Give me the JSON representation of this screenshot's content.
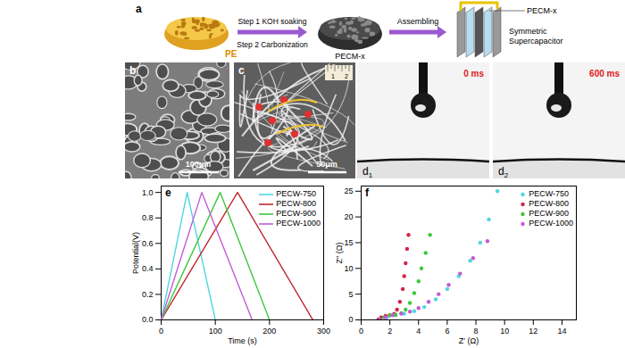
{
  "panels": {
    "a": {
      "label": "a",
      "step1": "Step 1 KOH soaking",
      "step2": "Step 2 Carbonization",
      "assemble": "Assembling",
      "material": "PE",
      "product": "PECM-x",
      "device_electrode": "PECM-x",
      "device": "Symmetric Supercapacitor"
    },
    "b": {
      "label": "b",
      "scale_bar": "100μm"
    },
    "c": {
      "label": "c",
      "scale_bar": "50μm",
      "ruler_labels": [
        "1",
        "2"
      ]
    },
    "d1": {
      "label": "d",
      "index": "1",
      "time": "0 ms"
    },
    "d2": {
      "label": "d",
      "index": "2",
      "time": "600 ms"
    }
  },
  "chart_data": [
    {
      "type": "line",
      "title": "e",
      "xlabel": "Time (s)",
      "ylabel": "Potential(V)",
      "xlim": [
        0,
        300
      ],
      "xticks": [
        0,
        100,
        200,
        300
      ],
      "ylim": [
        0,
        1.05
      ],
      "yticks": [
        {
          "value": 0,
          "label": "0.0"
        },
        {
          "value": 0.2,
          "label": "0.2"
        },
        {
          "value": 0.4,
          "label": "0.4"
        },
        {
          "value": 0.6,
          "label": "0.6"
        },
        {
          "value": 0.8,
          "label": "0.8"
        },
        {
          "value": 1.0,
          "label": "1.0"
        }
      ],
      "legend": "top-right",
      "series": [
        {
          "name": "PECW-750",
          "color": "#4fd6e0",
          "x": [
            0,
            48,
            100
          ],
          "values": [
            0,
            1.0,
            0
          ]
        },
        {
          "name": "PECW-800",
          "color": "#c0282e",
          "x": [
            0,
            141,
            280
          ],
          "values": [
            0,
            1.0,
            0
          ]
        },
        {
          "name": "PECW-900",
          "color": "#3cc83c",
          "x": [
            0,
            109,
            200
          ],
          "values": [
            0,
            1.0,
            0
          ]
        },
        {
          "name": "PECW-1000",
          "color": "#c45ad8",
          "x": [
            0,
            75,
            168
          ],
          "values": [
            0,
            1.0,
            0
          ]
        }
      ]
    },
    {
      "type": "scatter",
      "title": "f",
      "xlabel": "Z′ (Ω)",
      "ylabel": "Z″ (Ω)",
      "xlim": [
        0,
        15
      ],
      "xticks": [
        0,
        2,
        4,
        6,
        8,
        10,
        12,
        14
      ],
      "ylim": [
        0,
        26
      ],
      "yticks": [
        0,
        5,
        10,
        15,
        20,
        25
      ],
      "legend": "top-right",
      "marker": "circle",
      "series": [
        {
          "name": "PECW-750",
          "color": "#4fd6e0",
          "x": [
            1.3,
            1.8,
            2.4,
            3.0,
            3.7,
            4.4,
            5.2,
            6.0,
            6.8,
            7.6,
            8.3,
            8.9,
            9.5
          ],
          "values": [
            0.1,
            0.5,
            0.9,
            1.2,
            1.7,
            2.5,
            4,
            6,
            8.5,
            11.5,
            15,
            19.5,
            25
          ]
        },
        {
          "name": "PECW-800",
          "color": "#d4234a",
          "x": [
            1.2,
            1.4,
            1.7,
            2.0,
            2.3,
            2.5,
            2.7,
            2.9,
            3.0,
            3.1,
            3.2,
            3.3
          ],
          "values": [
            0.1,
            0.5,
            0.8,
            0.9,
            1.2,
            2,
            3.5,
            6,
            8.5,
            11,
            13.8,
            16.5
          ]
        },
        {
          "name": "PECW-900",
          "color": "#3cc83c",
          "x": [
            1.3,
            1.6,
            2.0,
            2.4,
            2.8,
            3.1,
            3.4,
            3.7,
            4.0,
            4.2,
            4.5,
            4.8
          ],
          "values": [
            0.1,
            0.5,
            0.9,
            1.0,
            1.3,
            2.0,
            3.3,
            5.2,
            7.5,
            10,
            13,
            16.5
          ]
        },
        {
          "name": "PECW-1000",
          "color": "#c45ad8",
          "x": [
            1.3,
            1.7,
            2.2,
            2.8,
            3.4,
            4.0,
            4.7,
            5.4,
            6.1,
            6.9,
            7.8,
            8.8
          ],
          "values": [
            0.1,
            0.5,
            0.9,
            1.2,
            1.6,
            2.3,
            3.5,
            5,
            6.8,
            9,
            12,
            15.3
          ]
        }
      ]
    }
  ]
}
